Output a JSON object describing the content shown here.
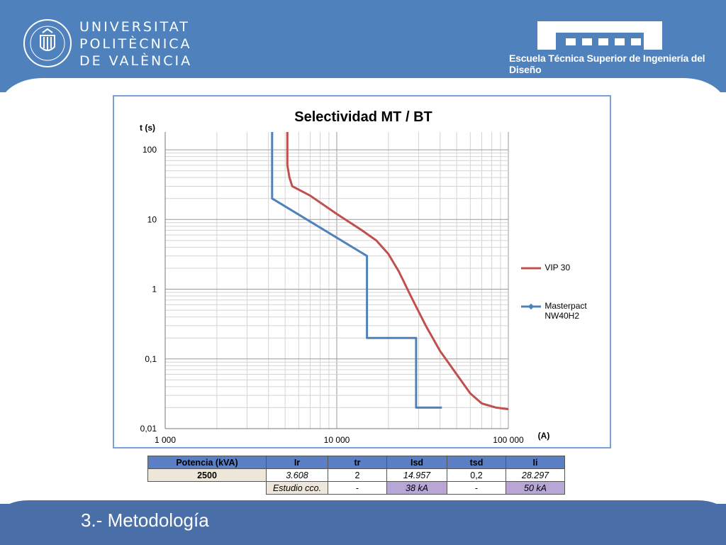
{
  "header": {
    "university_lines": [
      "UNIVERSITAT",
      "POLITÈCNICA",
      "DE VALÈNCIA"
    ],
    "school": "Escuela Técnica Superior de Ingeniería del Diseño"
  },
  "footer": {
    "section_title": "3.- Metodología"
  },
  "colors": {
    "header_bg": "#4f81bd",
    "vip30": "#c0504d",
    "masterpact": "#4f81bd"
  },
  "chart_data": {
    "type": "line",
    "title": "Selectividad MT / BT",
    "ylabel": "t (s)",
    "xlabel": "(A)",
    "xscale": "log",
    "yscale": "log",
    "xlim": [
      1000,
      100000
    ],
    "ylim": [
      0.01,
      180
    ],
    "x_ticks": [
      "1 000",
      "10 000",
      "100 000"
    ],
    "y_ticks": [
      "0,01",
      "0,1",
      "1",
      "10",
      "100"
    ],
    "grid": true,
    "legend": "right",
    "series": [
      {
        "name": "VIP 30",
        "points": [
          [
            5150,
            180
          ],
          [
            5150,
            60
          ],
          [
            5300,
            40
          ],
          [
            5500,
            30
          ],
          [
            7000,
            22
          ],
          [
            10000,
            12
          ],
          [
            14000,
            7
          ],
          [
            17000,
            5
          ],
          [
            20000,
            3.2
          ],
          [
            23000,
            1.8
          ],
          [
            27000,
            0.8
          ],
          [
            33000,
            0.3
          ],
          [
            40000,
            0.13
          ],
          [
            50000,
            0.06
          ],
          [
            60000,
            0.032
          ],
          [
            70000,
            0.023
          ],
          [
            85000,
            0.02
          ],
          [
            100000,
            0.019
          ]
        ]
      },
      {
        "name": "Masterpact NW40H2",
        "points": [
          [
            4200,
            180
          ],
          [
            4200,
            20
          ],
          [
            15000,
            3
          ],
          [
            15000,
            0.2
          ],
          [
            29000,
            0.2
          ],
          [
            29000,
            0.02
          ],
          [
            41000,
            0.02
          ]
        ]
      }
    ]
  },
  "table": {
    "headers": [
      "Potencia (kVA)",
      "Ir",
      "tr",
      "Isd",
      "tsd",
      "Ii"
    ],
    "row1": {
      "label": "2500",
      "ir": "3.608",
      "tr": "2",
      "isd": "14.957",
      "tsd": "0,2",
      "ii": "28.297"
    },
    "row2": {
      "ir": "Estudio cco.",
      "tr": "-",
      "isd": "38 kA",
      "tsd": "-",
      "ii": "50 kA"
    }
  }
}
